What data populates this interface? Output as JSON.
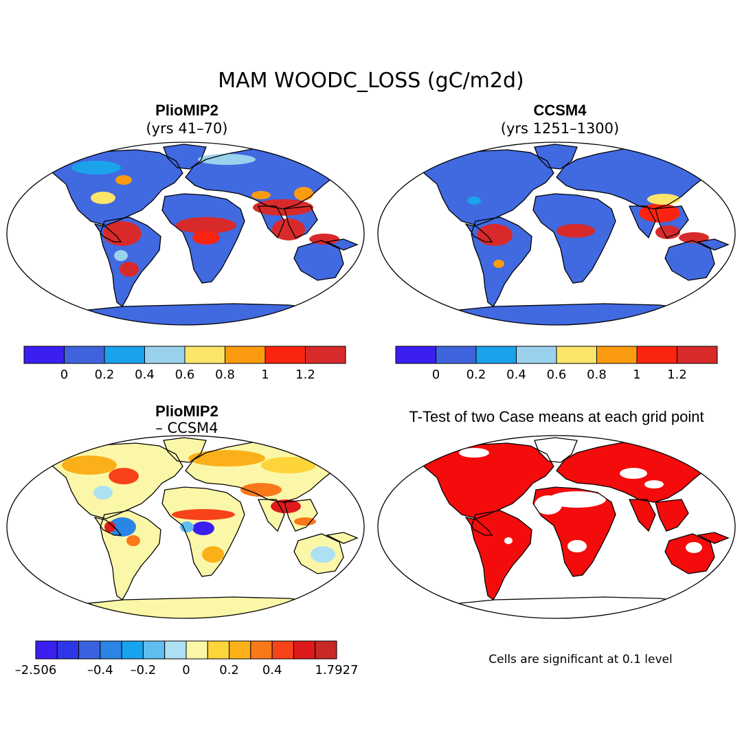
{
  "figure": {
    "title": "MAM WOODC_LOSS (gC/m2d)",
    "note": "Cells are significant at 0.1 level"
  },
  "panels": [
    {
      "id": "pliomip2",
      "title": "PlioMIP2",
      "subtitle": "(yrs 41–70)",
      "field": "absolute",
      "colorbar": {
        "colors": [
          "#3a1ff0",
          "#3f63dc",
          "#1aa2ea",
          "#9ad2ee",
          "#fbe56a",
          "#fb9c10",
          "#fb2410",
          "#d82a2a"
        ],
        "tick_labels": [
          "0",
          "0.2",
          "0.4",
          "0.6",
          "0.8",
          "1",
          "1.2"
        ]
      }
    },
    {
      "id": "ccsm4",
      "title": "CCSM4",
      "subtitle": "(yrs 1251–1300)",
      "field": "absolute",
      "colorbar": {
        "colors": [
          "#3a1ff0",
          "#3f63dc",
          "#1aa2ea",
          "#9ad2ee",
          "#fbe56a",
          "#fb9c10",
          "#fb2410",
          "#d82a2a"
        ],
        "tick_labels": [
          "0",
          "0.2",
          "0.4",
          "0.6",
          "0.8",
          "1",
          "1.2"
        ]
      }
    },
    {
      "id": "difference",
      "title": "PlioMIP2",
      "subtitle": "– CCSM4",
      "field": "difference",
      "colorbar": {
        "colors": [
          "#3a1ff0",
          "#2e37e8",
          "#3a62e0",
          "#2b85e6",
          "#16a4ee",
          "#5fbdf0",
          "#aee0f4",
          "#fbf7a8",
          "#fdd43a",
          "#fbb01a",
          "#f8781a",
          "#f7421a",
          "#de1a1a",
          "#c82828"
        ],
        "tick_labels": [
          "–2.506",
          "–0.4",
          "–0.2",
          "0",
          "0.2",
          "0.4",
          "1.7927"
        ]
      }
    },
    {
      "id": "ttest",
      "title": "T-Test of two Case means at each grid point",
      "field": "significance",
      "significant_color": "#f40c0c"
    }
  ]
}
